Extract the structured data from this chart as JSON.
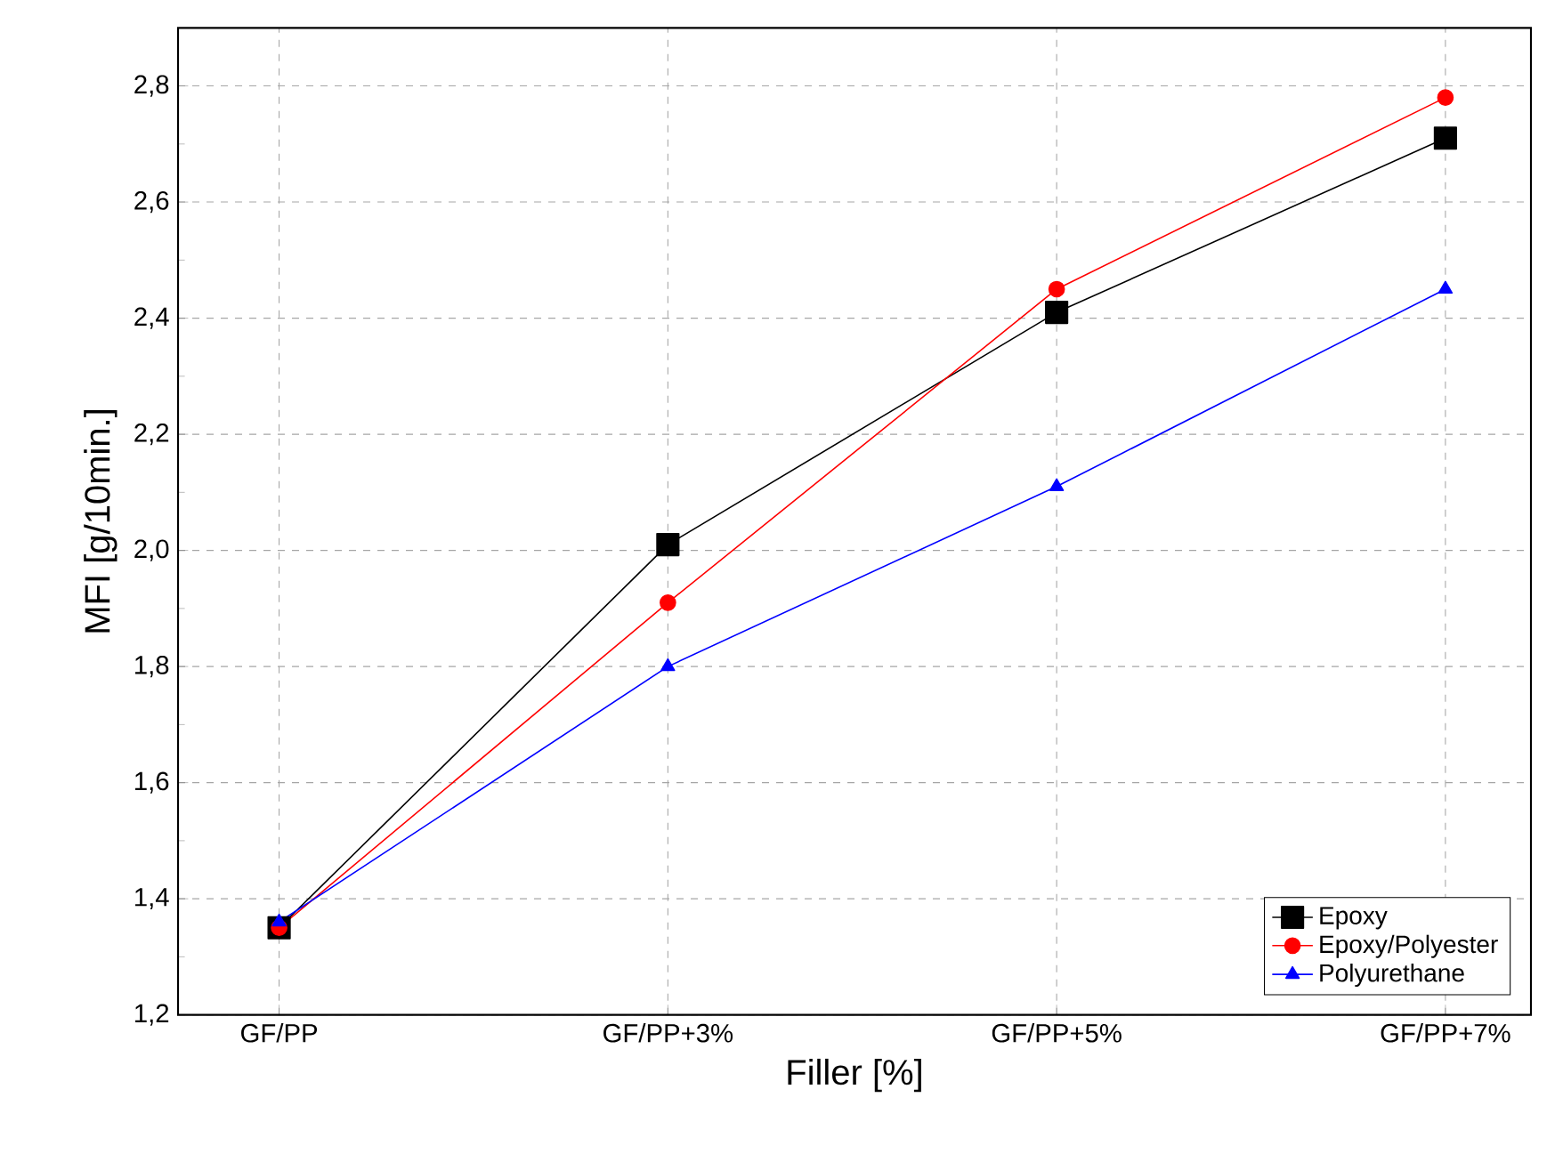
{
  "chart_data": {
    "type": "line",
    "xlabel": "Filler [%]",
    "ylabel": "MFI [g/10min.]",
    "categories": [
      "GF/PP",
      "GF/PP+3%",
      "GF/PP+5%",
      "GF/PP+7%"
    ],
    "series": [
      {
        "name": "Epoxy",
        "color": "#000000",
        "marker": "square",
        "values": [
          1.35,
          2.01,
          2.41,
          2.71
        ]
      },
      {
        "name": "Epoxy/Polyester",
        "color": "#ff0000",
        "marker": "circle",
        "values": [
          1.35,
          1.91,
          2.45,
          2.78
        ]
      },
      {
        "name": "Polyurethane",
        "color": "#0000ff",
        "marker": "triangle",
        "values": [
          1.36,
          1.8,
          2.11,
          2.45
        ]
      }
    ],
    "ylim": [
      1.2,
      2.9
    ],
    "yticks": [
      {
        "value": 1.2,
        "label": "1,2"
      },
      {
        "value": 1.4,
        "label": "1,4"
      },
      {
        "value": 1.6,
        "label": "1,6"
      },
      {
        "value": 1.8,
        "label": "1,8"
      },
      {
        "value": 2.0,
        "label": "2,0"
      },
      {
        "value": 2.2,
        "label": "2,2"
      },
      {
        "value": 2.4,
        "label": "2,4"
      },
      {
        "value": 2.6,
        "label": "2,6"
      },
      {
        "value": 2.8,
        "label": "2,8"
      }
    ],
    "grid": true,
    "legend": "bottom right",
    "line_style": "solid"
  }
}
